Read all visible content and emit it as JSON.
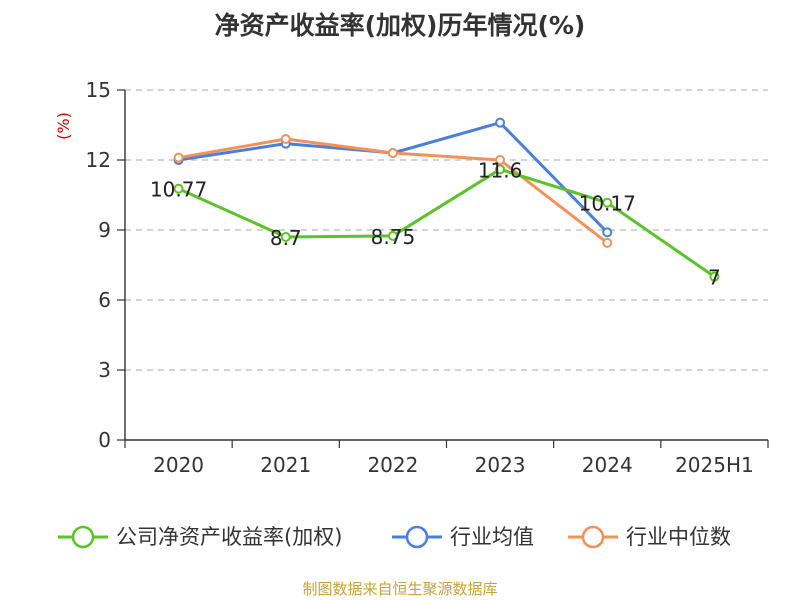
{
  "chart_data": {
    "type": "line",
    "title": "净资产收益率(加权)历年情况(%)",
    "ylabel": "(%)",
    "categories": [
      "2020",
      "2021",
      "2022",
      "2023",
      "2024",
      "2025H1"
    ],
    "ylim": [
      0,
      15
    ],
    "yticks": [
      0,
      3,
      6,
      9,
      12,
      15
    ],
    "grid": true,
    "legend_position": "bottom",
    "series": [
      {
        "name": "公司净资产收益率(加权)",
        "color": "#5cc22b",
        "values": [
          10.77,
          8.7,
          8.75,
          11.6,
          10.17,
          7
        ],
        "labels": [
          "10.77",
          "8.7",
          "8.75",
          "11.6",
          "10.17",
          "7"
        ]
      },
      {
        "name": "行业均值",
        "color": "#4a7fdc",
        "values": [
          12.0,
          12.7,
          12.3,
          13.6,
          8.9,
          null
        ]
      },
      {
        "name": "行业中位数",
        "color": "#f4915b",
        "values": [
          12.1,
          12.9,
          12.3,
          12.0,
          8.45,
          null
        ]
      }
    ]
  },
  "footer": {
    "source": "制图数据来自恒生聚源数据库"
  }
}
